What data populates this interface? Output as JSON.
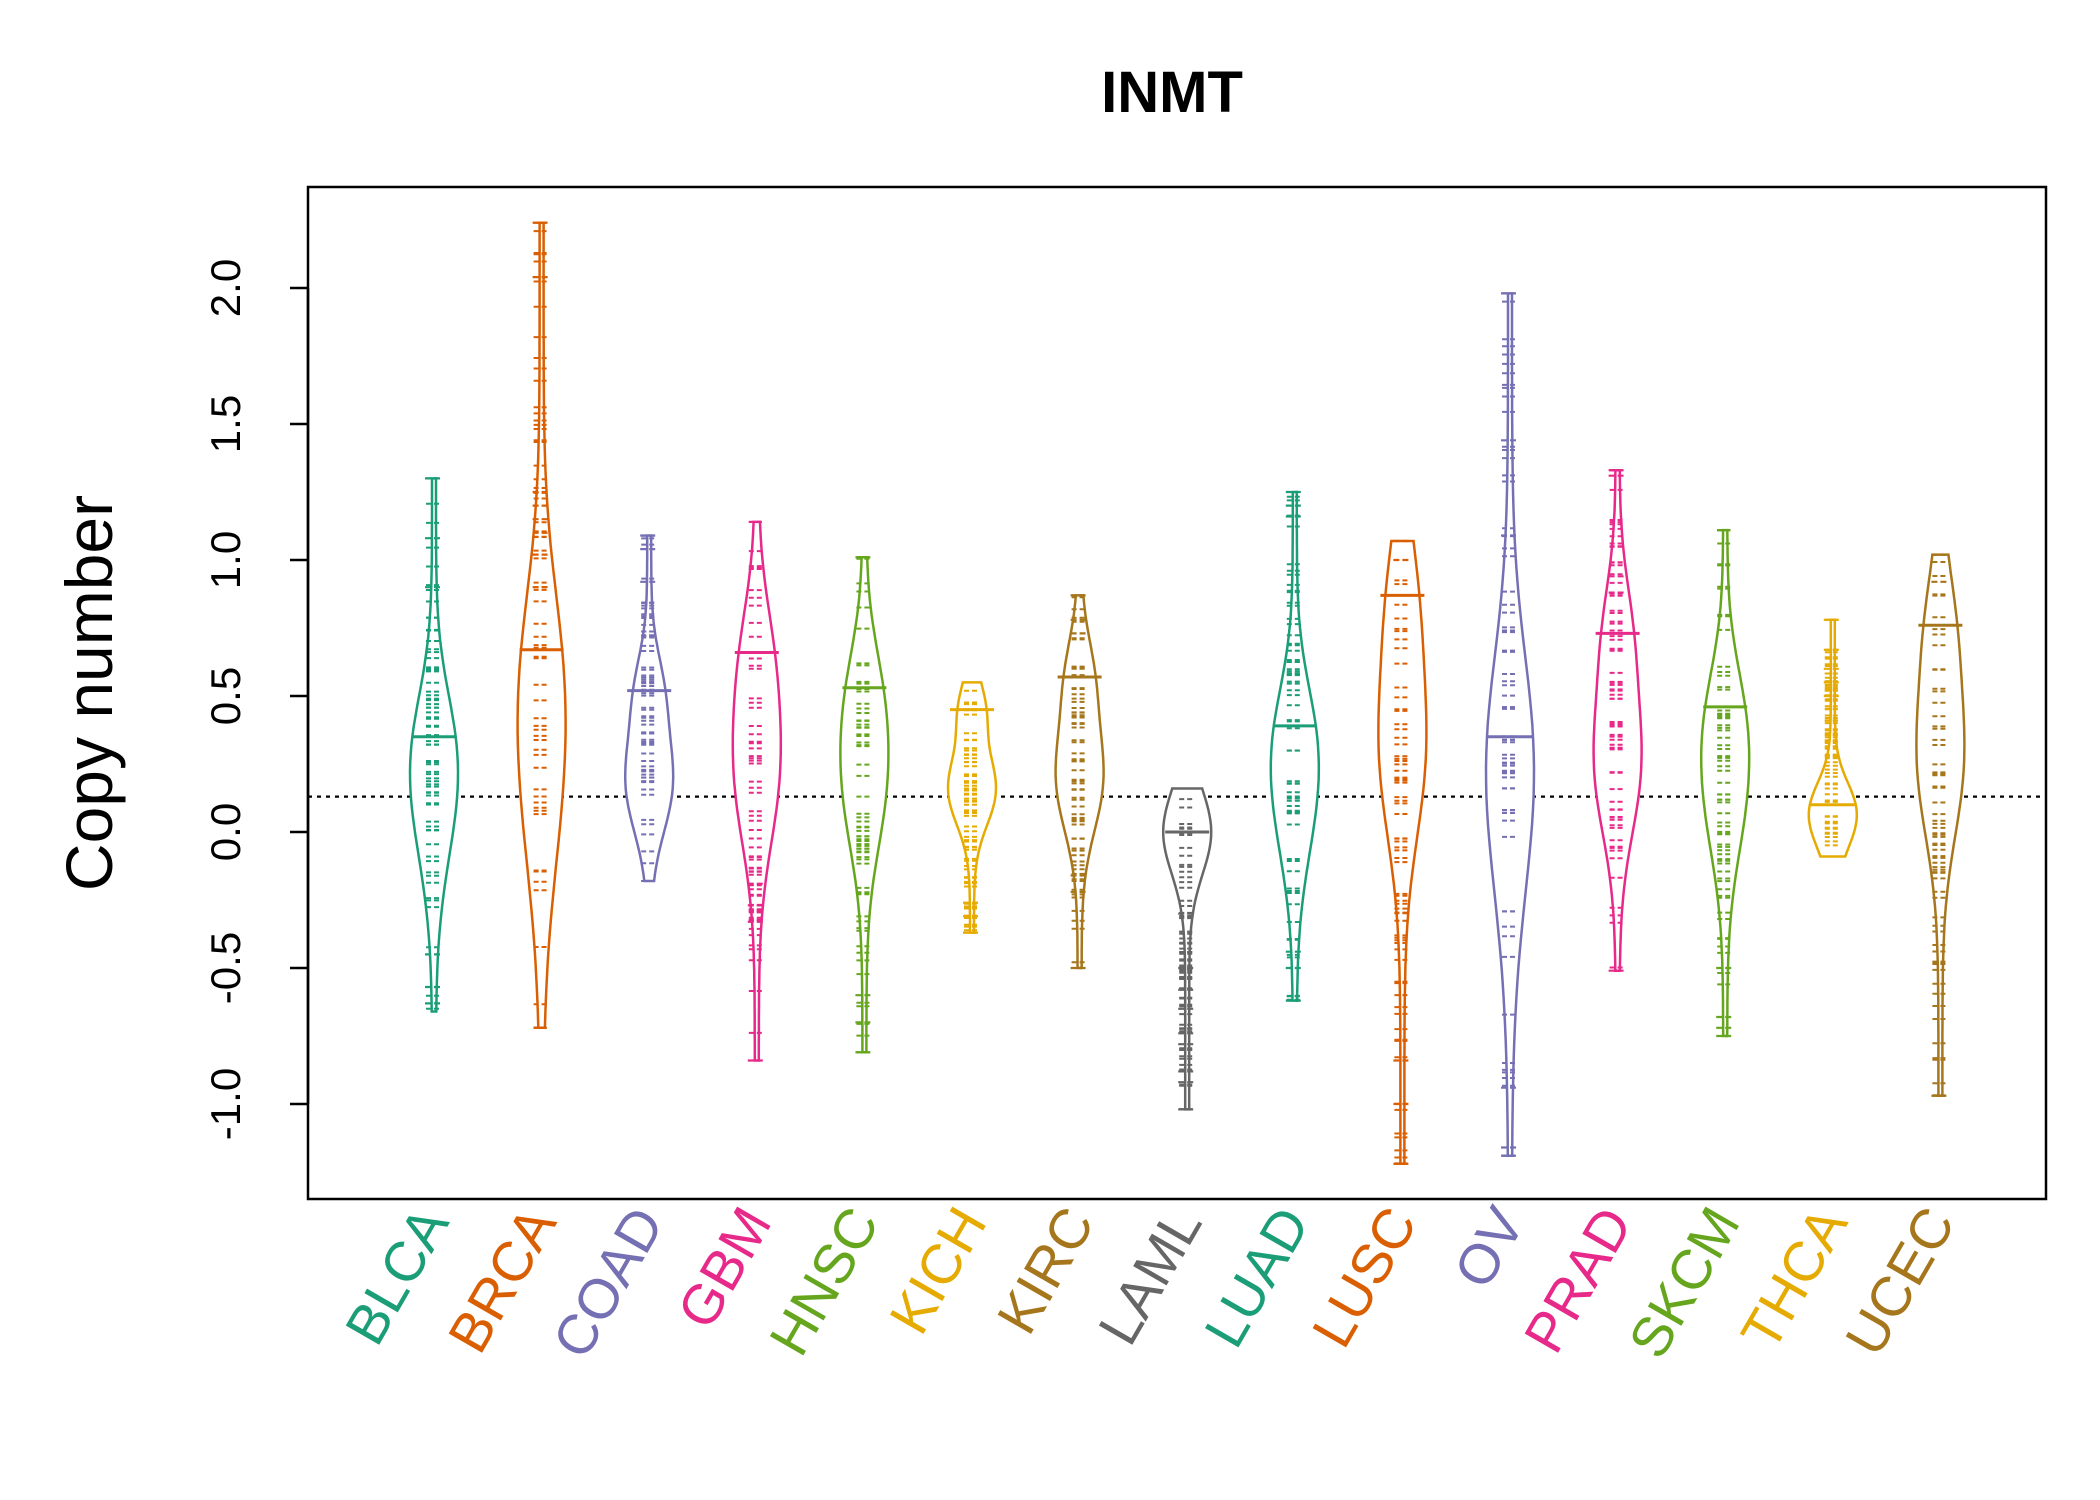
{
  "chart_data": {
    "type": "beanplot",
    "title": "INMT",
    "xlabel": "",
    "ylabel": "Copy number",
    "ylim": [
      -1.35,
      2.4
    ],
    "yticks": [
      -1.0,
      -0.5,
      0.0,
      0.5,
      1.0,
      1.5,
      2.0
    ],
    "ytick_labels": [
      "-1.0",
      "-0.5",
      "0.0",
      "0.5",
      "1.0",
      "1.5",
      "2.0"
    ],
    "reference_line": 0.13,
    "grid": false,
    "legend": "none",
    "categories": [
      "BLCA",
      "BRCA",
      "COAD",
      "GBM",
      "HNSC",
      "KICH",
      "KIRC",
      "LAML",
      "LUAD",
      "LUSC",
      "OV",
      "PRAD",
      "SKCM",
      "THCA",
      "UCEC"
    ],
    "colors": [
      "#1b9e77",
      "#d95f02",
      "#7570b3",
      "#e7298a",
      "#66a61e",
      "#e6ab02",
      "#a6761d",
      "#666666",
      "#1b9e77",
      "#d95f02",
      "#7570b3",
      "#e7298a",
      "#66a61e",
      "#e6ab02",
      "#a6761d"
    ],
    "series": [
      {
        "category": "BLCA",
        "mean": 0.35,
        "min": -0.66,
        "max": 1.3,
        "outliers": [
          1.3,
          1.08,
          0.9,
          -0.45,
          -0.57,
          -0.63
        ]
      },
      {
        "category": "BRCA",
        "mean": 0.67,
        "min": -0.72,
        "max": 2.24,
        "outliers": [
          2.24,
          2.04,
          1.25,
          1.2,
          1.15,
          1.1,
          1.02,
          0.9
        ]
      },
      {
        "category": "COAD",
        "mean": 0.52,
        "min": -0.18,
        "max": 1.09,
        "outliers": [
          1.09,
          1.04,
          0.92
        ]
      },
      {
        "category": "GBM",
        "mean": 0.66,
        "min": -0.84,
        "max": 1.14,
        "outliers": [
          -0.84,
          -0.33,
          -0.27,
          -0.19
        ]
      },
      {
        "category": "HNSC",
        "mean": 0.53,
        "min": -0.81,
        "max": 1.01,
        "outliers": [
          1.01,
          -0.81,
          -0.7,
          -0.6
        ]
      },
      {
        "category": "KICH",
        "mean": 0.45,
        "min": -0.37,
        "max": 0.55,
        "outliers": [
          -0.37,
          -0.31,
          -0.26
        ]
      },
      {
        "category": "KIRC",
        "mean": 0.57,
        "min": -0.5,
        "max": 0.87,
        "outliers": [
          0.87,
          0.78,
          0.73,
          -0.5,
          -0.22,
          -0.16
        ]
      },
      {
        "category": "LAML",
        "mean": 0.0,
        "min": -1.02,
        "max": 0.16,
        "outliers": [
          -1.02,
          -0.92,
          -0.88,
          -0.78,
          -0.74,
          -0.65,
          -0.58,
          -0.5,
          -0.3
        ]
      },
      {
        "category": "LUAD",
        "mean": 0.39,
        "min": -0.62,
        "max": 1.25,
        "outliers": [
          1.25,
          1.2,
          1.16,
          -0.62,
          -0.5,
          -0.44
        ]
      },
      {
        "category": "LUSC",
        "mean": 0.87,
        "min": -1.22,
        "max": 1.07,
        "outliers": [
          1.07,
          1.0,
          -1.22,
          -1.0,
          -0.84
        ]
      },
      {
        "category": "OV",
        "mean": 0.35,
        "min": -1.19,
        "max": 1.98,
        "outliers": [
          1.98,
          1.44,
          1.09,
          -1.19,
          -1.16,
          -0.94
        ]
      },
      {
        "category": "PRAD",
        "mean": 0.73,
        "min": -0.51,
        "max": 1.33,
        "outliers": [
          1.33,
          1.31,
          0.94,
          0.88,
          -0.51
        ]
      },
      {
        "category": "SKCM",
        "mean": 0.46,
        "min": -0.75,
        "max": 1.11,
        "outliers": [
          -0.75,
          -0.72,
          -0.68,
          -0.5
        ]
      },
      {
        "category": "THCA",
        "mean": 0.1,
        "min": -0.09,
        "max": 0.78,
        "outliers": [
          0.78,
          0.67,
          0.6,
          0.55,
          0.5
        ]
      },
      {
        "category": "UCEC",
        "mean": 0.76,
        "min": -0.97,
        "max": 1.02,
        "outliers": [
          1.02,
          0.92,
          -0.97
        ]
      }
    ]
  }
}
